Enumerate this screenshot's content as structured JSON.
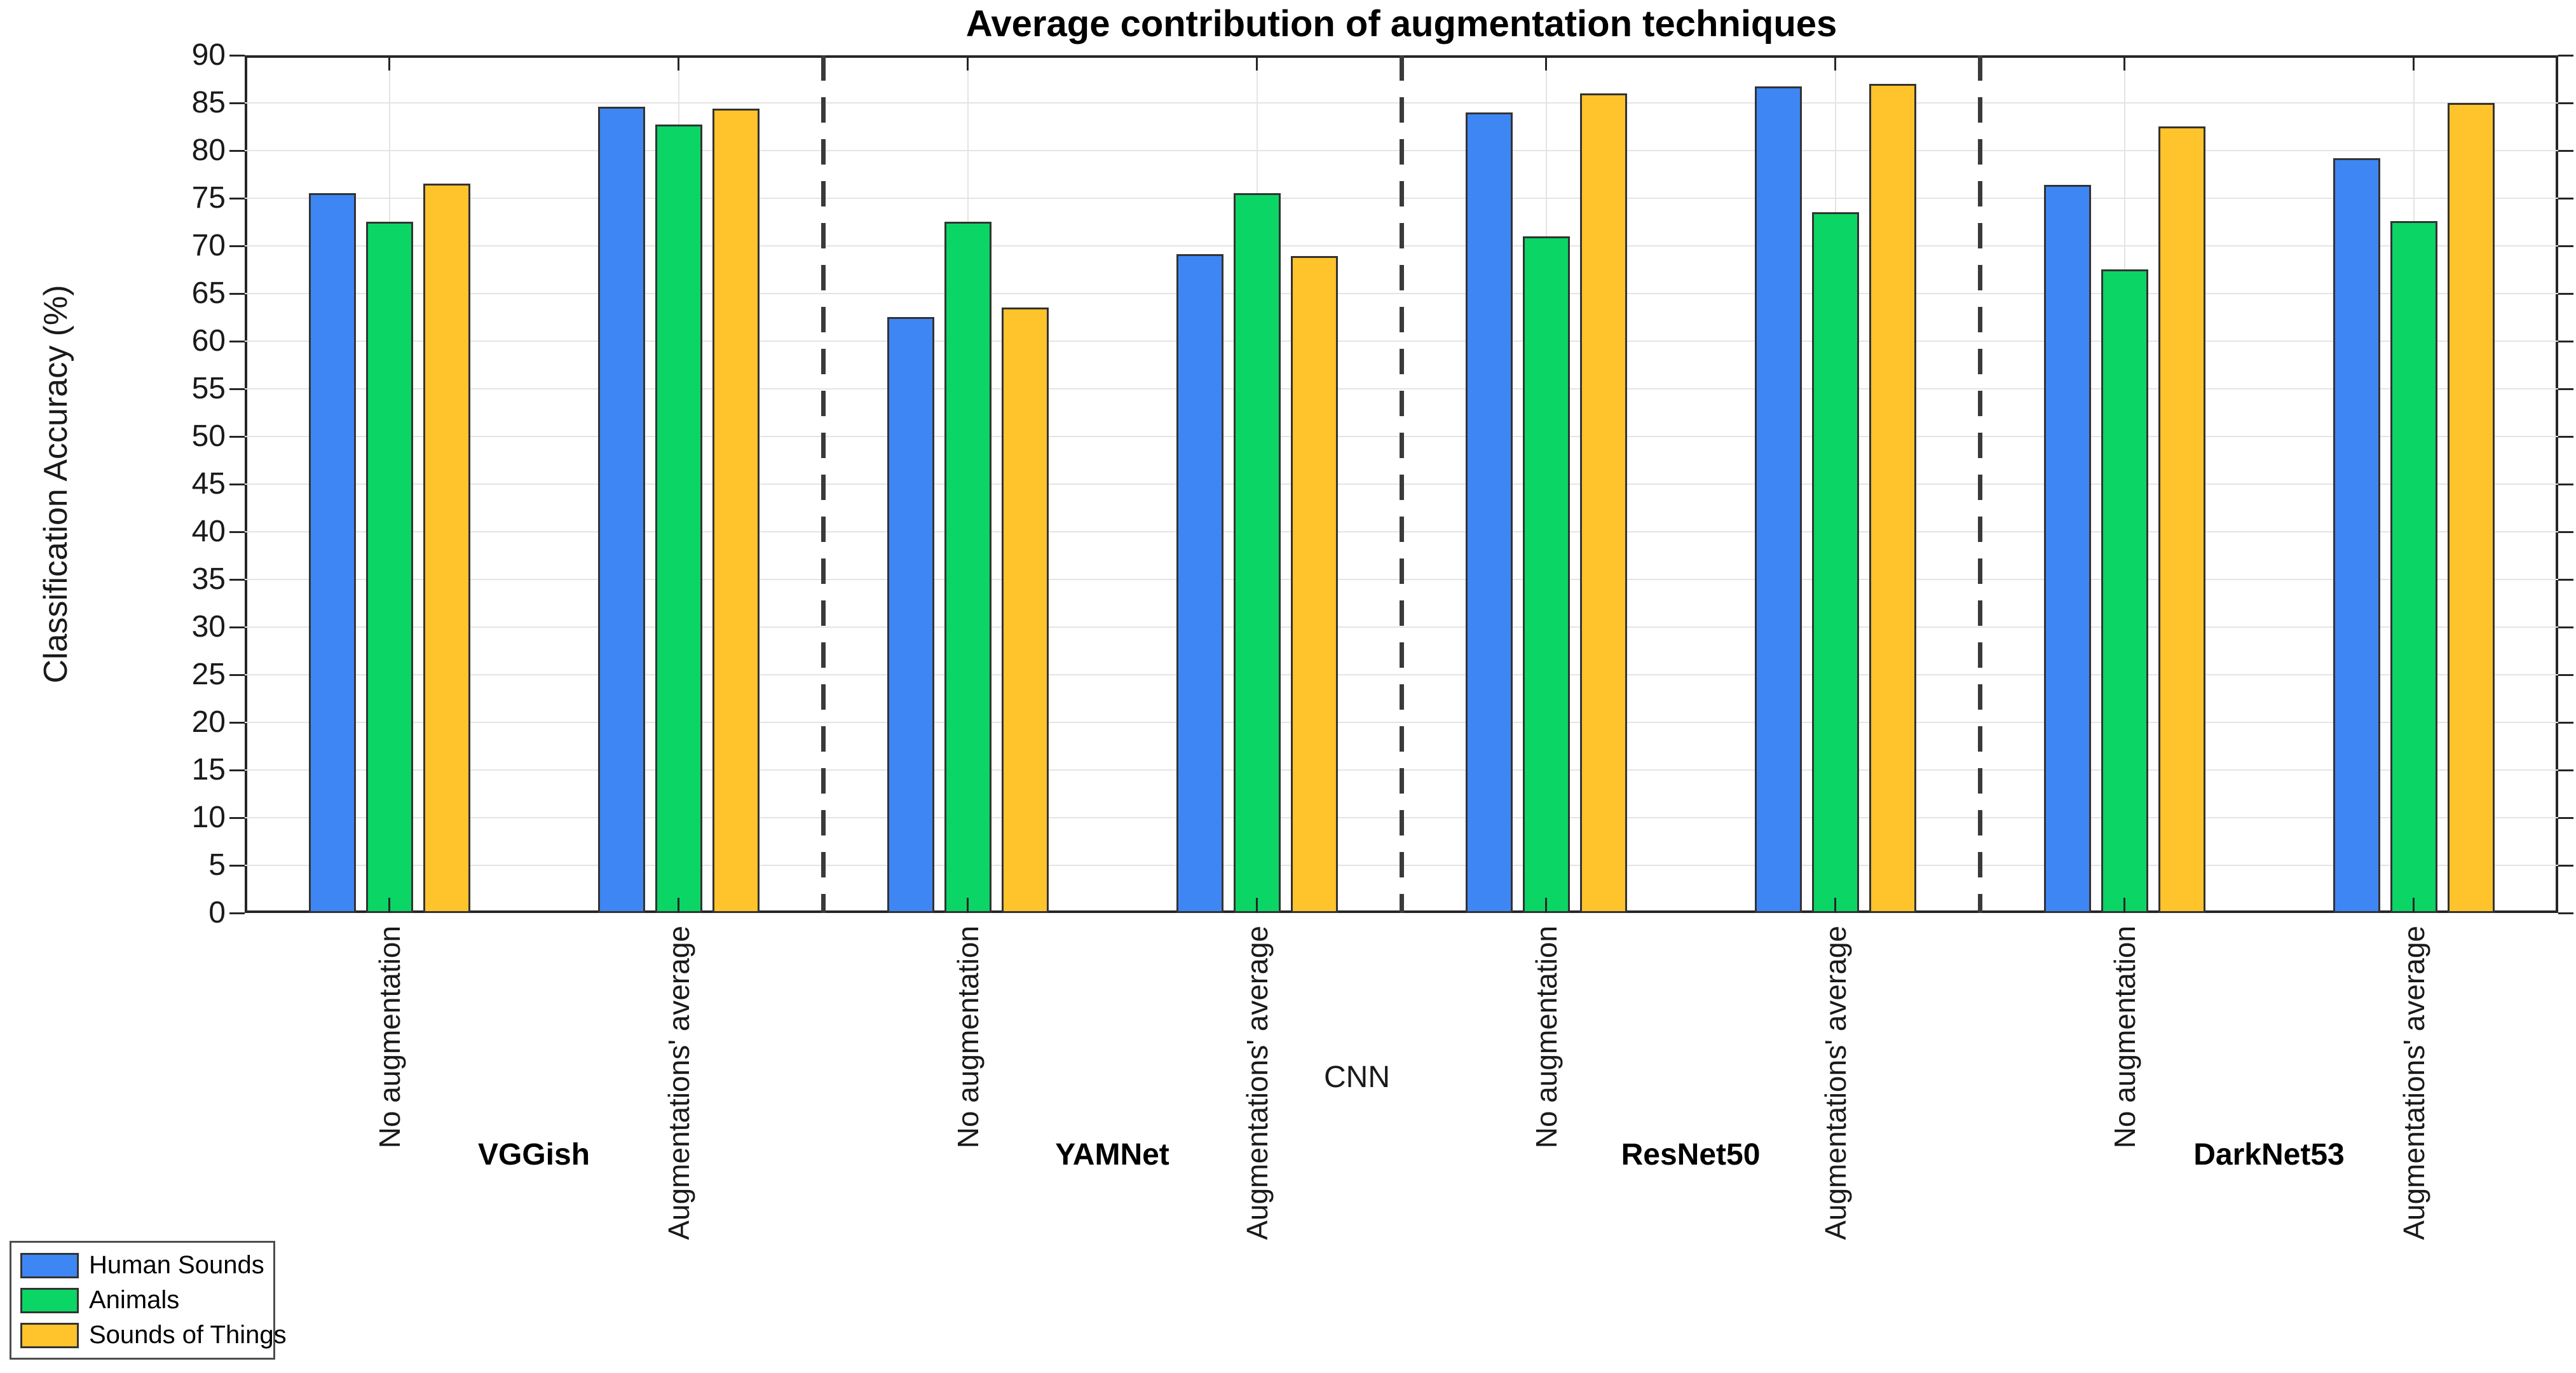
{
  "chart_data": {
    "type": "bar",
    "title": "Average contribution of augmentation techniques",
    "ylabel": "Classification Accuracy (%)",
    "xlabel": "CNN",
    "ylim": [
      0,
      90
    ],
    "ytick_step": 5,
    "grid": true,
    "legend_position": "bottom-left-outside",
    "cnn_groups": [
      "VGGish",
      "YAMNet",
      "ResNet50",
      "DarkNet53"
    ],
    "condition_labels": [
      "No augmentation",
      "Augmentations' average"
    ],
    "categories": [
      {
        "cnn": "VGGish",
        "condition": "No augmentation"
      },
      {
        "cnn": "VGGish",
        "condition": "Augmentations' average"
      },
      {
        "cnn": "YAMNet",
        "condition": "No augmentation"
      },
      {
        "cnn": "YAMNet",
        "condition": "Augmentations' average"
      },
      {
        "cnn": "ResNet50",
        "condition": "No augmentation"
      },
      {
        "cnn": "ResNet50",
        "condition": "Augmentations' average"
      },
      {
        "cnn": "DarkNet53",
        "condition": "No augmentation"
      },
      {
        "cnn": "DarkNet53",
        "condition": "Augmentations' average"
      }
    ],
    "series": [
      {
        "name": "Human Sounds",
        "color": "#3F86F5",
        "values": [
          75.5,
          84.6,
          62.5,
          69.1,
          84.0,
          86.7,
          76.4,
          79.2
        ]
      },
      {
        "name": "Animals",
        "color": "#0BD564",
        "values": [
          72.5,
          82.7,
          72.5,
          75.5,
          71.0,
          73.5,
          67.5,
          72.6
        ]
      },
      {
        "name": "Sounds of Things",
        "color": "#FFC32B",
        "values": [
          76.5,
          84.4,
          63.5,
          68.9,
          86.0,
          87.0,
          82.5,
          85.0
        ]
      }
    ],
    "colors": {
      "bar_edge": "#333333",
      "axis": "#262626",
      "grid": "#E4E4E4",
      "separator": "#3A3A3A",
      "background": "#FFFFFF"
    }
  }
}
